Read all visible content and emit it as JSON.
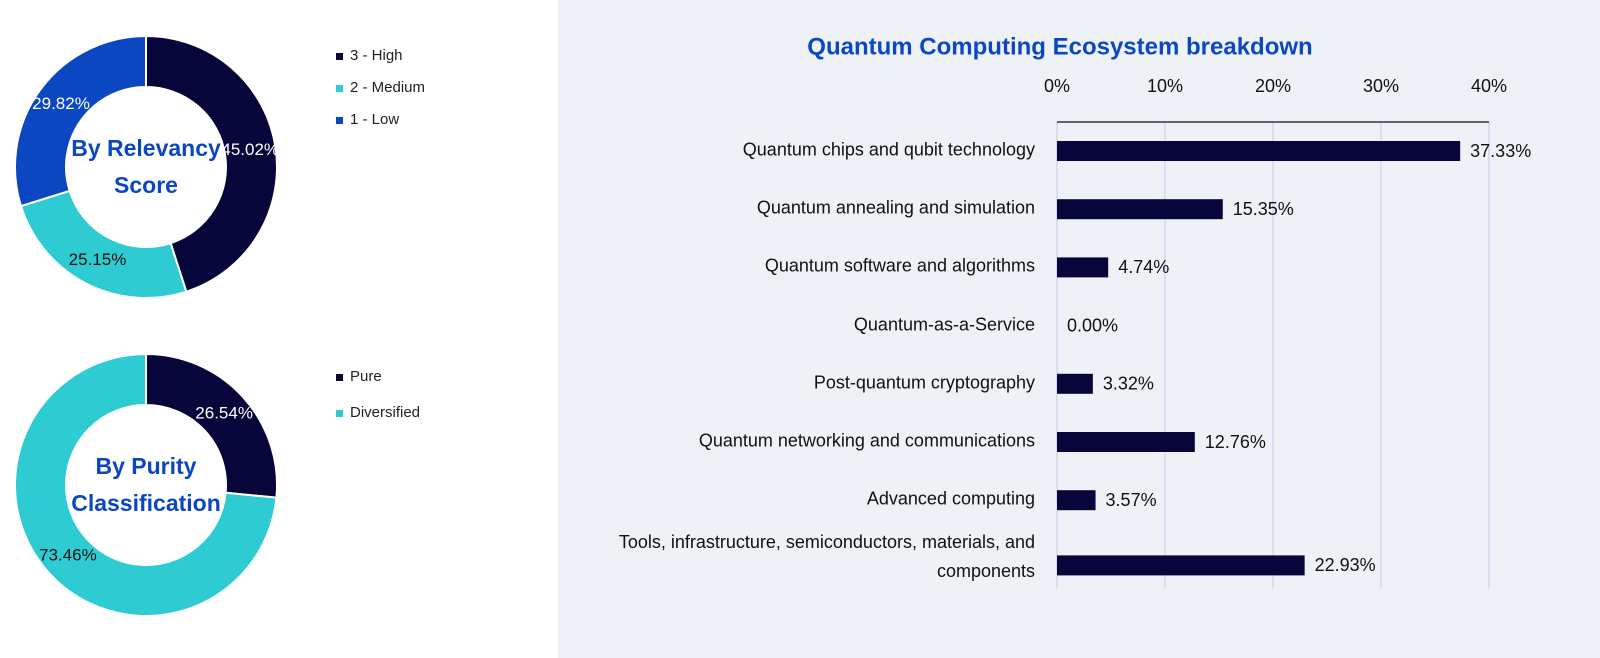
{
  "chart_data": [
    {
      "type": "donut",
      "center_text": "By Relevancy Score",
      "series": [
        {
          "name": "3 - High",
          "color": "#06063a",
          "values": [
            45.02
          ],
          "value_labels": [
            "45.02%"
          ]
        },
        {
          "name": "2 - Medium",
          "color": "#2ecbd3",
          "values": [
            25.15
          ],
          "value_labels": [
            "25.15%"
          ]
        },
        {
          "name": "1 - Low",
          "color": "#0b47c0",
          "values": [
            29.82
          ],
          "value_labels": [
            "29.82%"
          ]
        }
      ]
    },
    {
      "type": "donut",
      "center_text": "By Purity Classification",
      "series": [
        {
          "name": "Pure",
          "color": "#06063a",
          "values": [
            26.54
          ],
          "value_labels": [
            "26.54%"
          ]
        },
        {
          "name": "Diversified",
          "color": "#2ecbd3",
          "values": [
            73.46
          ],
          "value_labels": [
            "73.46%"
          ]
        }
      ]
    },
    {
      "type": "hbar",
      "title": "Quantum Computing Ecosystem breakdown",
      "categories": [
        "Quantum chips and qubit technology",
        "Quantum annealing and simulation",
        "Quantum software and algorithms",
        "Quantum-as-a-Service",
        "Post-quantum cryptography",
        "Quantum networking and communications",
        "Advanced computing",
        "Tools, infrastructure, semiconductors, materials, and components"
      ],
      "values": [
        37.33,
        15.35,
        4.74,
        0.0,
        3.32,
        12.76,
        3.57,
        22.93
      ],
      "value_labels": [
        "37.33%",
        "15.35%",
        "4.74%",
        "0.00%",
        "3.32%",
        "12.76%",
        "3.57%",
        "22.93%"
      ],
      "color": "#06063a",
      "xlim": [
        0,
        40
      ],
      "xticks": [
        {
          "value": 0,
          "label": "0%"
        },
        {
          "value": 10,
          "label": "10%"
        },
        {
          "value": 20,
          "label": "20%"
        },
        {
          "value": 30,
          "label": "30%"
        },
        {
          "value": 40,
          "label": "40%"
        }
      ],
      "grid": true
    }
  ]
}
